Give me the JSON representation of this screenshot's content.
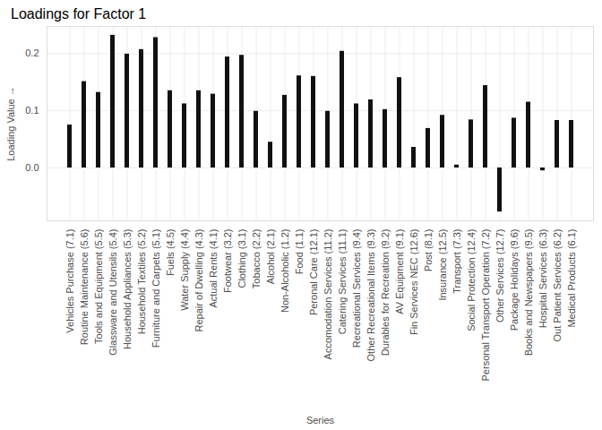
{
  "chart_data": {
    "type": "bar",
    "title": "Loadings for Factor 1",
    "x_label": "Series",
    "y_label": "Loading Value",
    "categories": [
      "Vehicles Purchase (7.1)",
      "Routine Maintenance (5.6)",
      "Tools and Equipment (5.5)",
      "Glassware and Utensils (5.4)",
      "Household Appliances (5.3)",
      "Household Textiles (5.2)",
      "Furniture and Carpets (5.1)",
      "Fuels (4.5)",
      "Water Supply (4.4)",
      "Repair of Dwelling (4.3)",
      "Actual Rents (4.1)",
      "Footwear (3.2)",
      "Clothing (3.1)",
      "Tobacco (2.2)",
      "Alcohol (2.1)",
      "Non-Alcoholic (1.2)",
      "Food (1.1)",
      "Peronal Care (12.1)",
      "Accomodation Services (11.2)",
      "Catering Services (11.1)",
      "Recreational Services (9.4)",
      "Other Recreational Items (9.3)",
      "Durables for Recreation (9.2)",
      "AV Equipment (9.1)",
      "Fin Services NEC (12.6)",
      "Post (8.1)",
      "Insurance (12.5)",
      "Transport (7.3)",
      "Social Protection (12.4)",
      "Personal Transport Operation (7.2)",
      "Other Services (12.7)",
      "Package Holidays (9.6)",
      "Books and Newspapers (9.5)",
      "Hospital Services (6.3)",
      "Out Patient Services (6.2)",
      "Medical Products (6.1)"
    ],
    "values": [
      0.075,
      0.151,
      0.132,
      0.232,
      0.199,
      0.207,
      0.228,
      0.135,
      0.112,
      0.135,
      0.129,
      0.194,
      0.197,
      0.099,
      0.045,
      0.127,
      0.161,
      0.16,
      0.099,
      0.204,
      0.112,
      0.119,
      0.102,
      0.158,
      0.036,
      0.069,
      0.092,
      0.005,
      0.084,
      0.144,
      -0.077,
      0.087,
      0.115,
      -0.005,
      0.083,
      0.083
    ],
    "color": "#111111",
    "ylim": [
      -0.0925,
      0.2475
    ],
    "yticks": [
      {
        "value": 0,
        "label": "0.0"
      },
      0.1,
      0.2
    ],
    "grid": true
  }
}
